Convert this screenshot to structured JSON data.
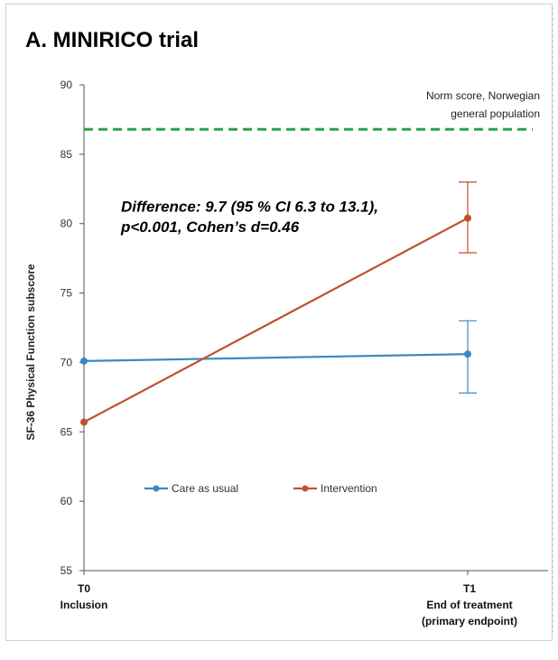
{
  "chart_data": {
    "type": "line",
    "title": "A. MINIRICO trial",
    "ylabel": "SF-36 Physical Function subscore",
    "xlabel": "",
    "ylim": [
      55,
      90
    ],
    "yticks": [
      55,
      60,
      65,
      70,
      75,
      80,
      85,
      90
    ],
    "x_categories": [
      {
        "line1": "T0",
        "line2": "Inclusion",
        "line3": ""
      },
      {
        "line1": "T1",
        "line2": "End of treatment",
        "line3": "(primary endpoint)"
      }
    ],
    "series": [
      {
        "name": "Care as usual",
        "color": "#3a88c4",
        "values": [
          70.1,
          70.6
        ],
        "error_low": [
          null,
          67.8
        ],
        "error_high": [
          null,
          73.0
        ]
      },
      {
        "name": "Intervention",
        "color": "#c2502e",
        "values": [
          65.7,
          80.4
        ],
        "error_low": [
          null,
          77.9
        ],
        "error_high": [
          null,
          83.0
        ]
      }
    ],
    "reference_line": {
      "value": 86.8,
      "color": "#2aa34a",
      "label_line1": "Norm score, Norwegian",
      "label_line2": "general population"
    },
    "annotation": {
      "line1": "Difference: 9.7 (95 % CI 6.3 to 13.1),",
      "line2": "p<0.001, Cohen’s d=0.46"
    },
    "legend_placement": "bottom-center",
    "grid": false
  }
}
